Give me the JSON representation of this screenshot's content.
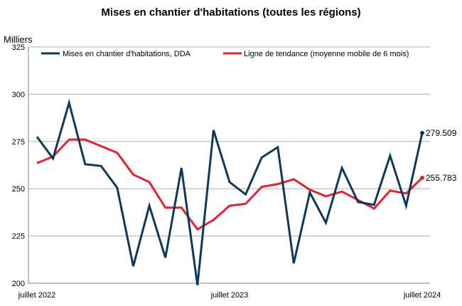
{
  "chart_data": {
    "type": "line",
    "title": "Mises en chantier d'habitations (toutes les régions)",
    "y_unit": "Milliers",
    "ylim": [
      200,
      325
    ],
    "yticks": [
      "200",
      "225",
      "250",
      "275",
      "300",
      "325"
    ],
    "x_tick_labels": [
      {
        "index": 0,
        "label": "juillet 2022"
      },
      {
        "index": 12,
        "label": "juillet 2023"
      },
      {
        "index": 24,
        "label": "juillet 2024"
      }
    ],
    "x": [
      "2022-07",
      "2022-08",
      "2022-09",
      "2022-10",
      "2022-11",
      "2022-12",
      "2023-01",
      "2023-02",
      "2023-03",
      "2023-04",
      "2023-05",
      "2023-06",
      "2023-07",
      "2023-08",
      "2023-09",
      "2023-10",
      "2023-11",
      "2023-12",
      "2024-01",
      "2024-02",
      "2024-03",
      "2024-04",
      "2024-05",
      "2024-06",
      "2024-07"
    ],
    "grid": true,
    "legend_position": "top",
    "series": [
      {
        "name": "Mises en chantier d'habitations, DDA",
        "color": "#0d3a5a",
        "values": [
          277.5,
          266,
          295.5,
          263,
          262,
          250.5,
          209,
          241,
          213.5,
          261,
          199,
          281,
          253.5,
          247,
          266.5,
          272,
          210.5,
          248,
          232,
          261,
          243,
          241.5,
          267.5,
          241,
          279.509
        ],
        "end_label": "279.509"
      },
      {
        "name": "Ligne de tendance (moyenne mobile de 6 mois)",
        "color": "#e02433",
        "values": [
          263.5,
          267,
          276,
          276,
          272.5,
          269,
          257.5,
          253.5,
          240,
          240,
          228.5,
          233.5,
          241,
          242,
          251,
          252.5,
          255,
          249.5,
          246,
          248.5,
          244,
          239.5,
          249,
          247.5,
          255.783
        ],
        "end_label": "255.783"
      }
    ]
  }
}
